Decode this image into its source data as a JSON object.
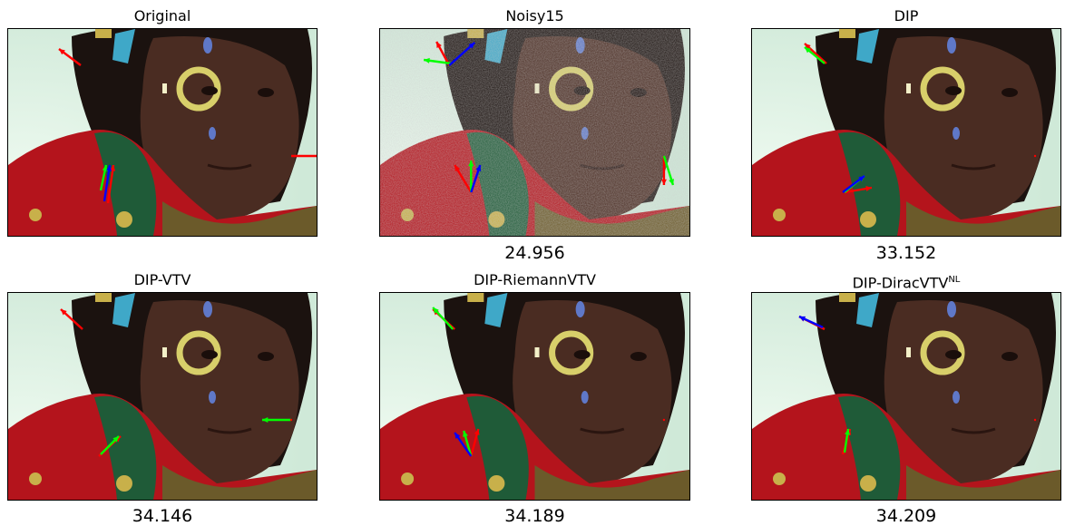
{
  "panels": [
    {
      "title": "Original",
      "title_sup": "",
      "score": ""
    },
    {
      "title": "Noisy15",
      "title_sup": "",
      "score": "24.956"
    },
    {
      "title": "DIP",
      "title_sup": "",
      "score": "33.152"
    },
    {
      "title": "DIP-VTV",
      "title_sup": "",
      "score": "34.146"
    },
    {
      "title": "DIP-RiemannVTV",
      "title_sup": "",
      "score": "34.189"
    },
    {
      "title": "DIP-DiracVTV",
      "title_sup": "NL",
      "score": "34.209"
    }
  ],
  "colors": {
    "arrow_red": "#ff0000",
    "arrow_green": "#00ff00",
    "arrow_blue": "#0000ff",
    "background_mint": "#cfe9d8",
    "sweater_red": "#b4141c",
    "sweater_green": "#1f5b38",
    "skin": "#4a2c22",
    "hair": "#1b120f",
    "face_paint_yellow": "#d8cf6a",
    "face_paint_blue": "#5f78c8"
  }
}
